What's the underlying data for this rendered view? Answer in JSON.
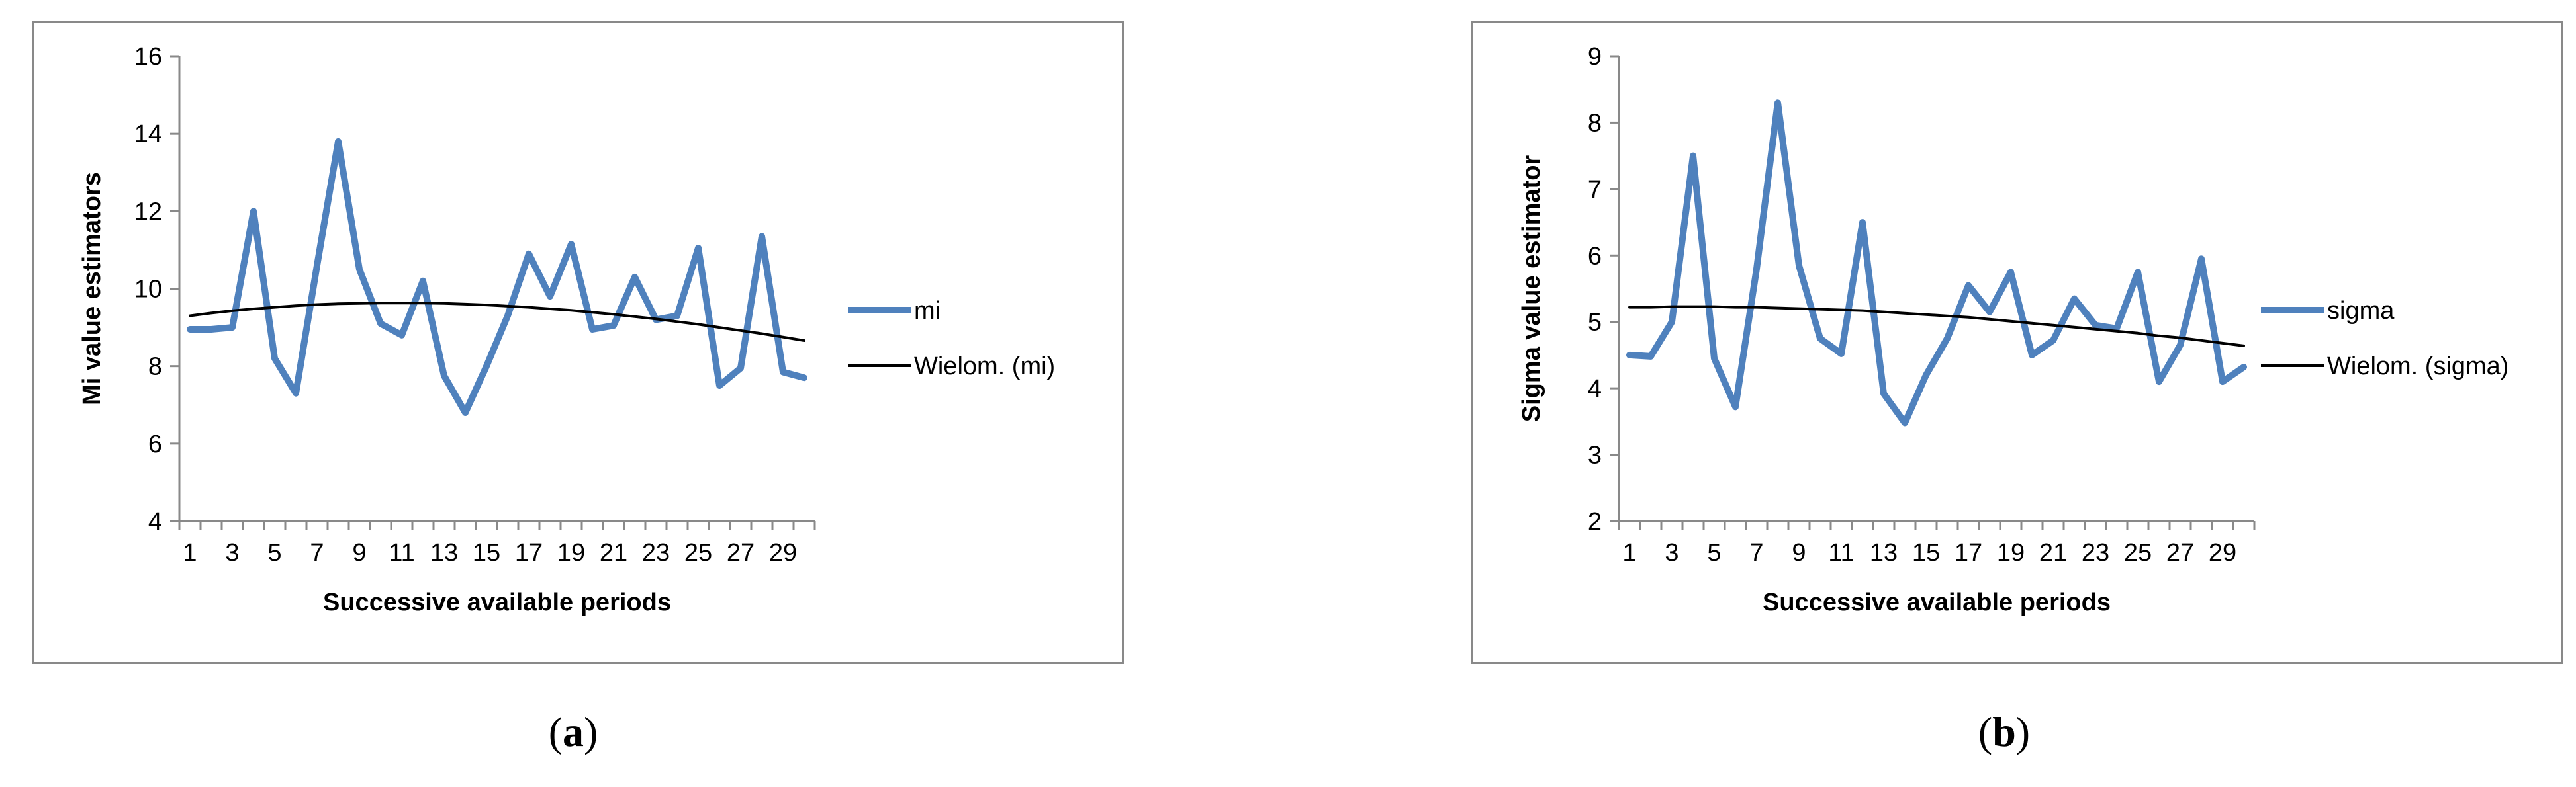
{
  "panels": [
    {
      "label": "a",
      "chart_data": {
        "type": "line",
        "title": "",
        "xlabel": "Successive available periods",
        "ylabel": "Mi value estimators",
        "x": [
          1,
          2,
          3,
          4,
          5,
          6,
          7,
          8,
          9,
          10,
          11,
          12,
          13,
          14,
          15,
          16,
          17,
          18,
          19,
          20,
          21,
          22,
          23,
          24,
          25,
          26,
          27,
          28,
          29,
          30
        ],
        "x_tick_labels": [
          "1",
          "3",
          "5",
          "7",
          "9",
          "11",
          "13",
          "15",
          "17",
          "19",
          "21",
          "23",
          "25",
          "27",
          "29"
        ],
        "ylim": [
          4,
          16
        ],
        "y_ticks": [
          "4",
          "6",
          "8",
          "10",
          "12",
          "14",
          "16"
        ],
        "grid": false,
        "legend_position": "right",
        "series": [
          {
            "name": "mi",
            "color": "#4f81bd",
            "values": [
              8.95,
              8.95,
              9.0,
              12.0,
              8.2,
              7.3,
              10.6,
              13.8,
              10.5,
              9.1,
              8.8,
              10.2,
              7.75,
              6.8,
              8.0,
              9.3,
              10.9,
              9.8,
              11.15,
              8.95,
              9.05,
              10.3,
              9.2,
              9.3,
              11.05,
              7.5,
              7.95,
              11.35,
              7.85,
              7.7
            ]
          },
          {
            "name": "Wielom. (mi)",
            "color": "#000000",
            "values": [
              9.3,
              9.37,
              9.43,
              9.48,
              9.52,
              9.56,
              9.59,
              9.61,
              9.62,
              9.63,
              9.63,
              9.63,
              9.62,
              9.6,
              9.58,
              9.55,
              9.52,
              9.48,
              9.44,
              9.39,
              9.34,
              9.28,
              9.22,
              9.15,
              9.08,
              9.0,
              8.92,
              8.84,
              8.75,
              8.66
            ]
          }
        ]
      }
    },
    {
      "label": "b",
      "chart_data": {
        "type": "line",
        "title": "",
        "xlabel": "Successive available periods",
        "ylabel": "Sigma value estimator",
        "x": [
          1,
          2,
          3,
          4,
          5,
          6,
          7,
          8,
          9,
          10,
          11,
          12,
          13,
          14,
          15,
          16,
          17,
          18,
          19,
          20,
          21,
          22,
          23,
          24,
          25,
          26,
          27,
          28,
          29,
          30
        ],
        "x_tick_labels": [
          "1",
          "3",
          "5",
          "7",
          "9",
          "11",
          "13",
          "15",
          "17",
          "19",
          "21",
          "23",
          "25",
          "27",
          "29"
        ],
        "ylim": [
          2,
          9
        ],
        "y_ticks": [
          "2",
          "3",
          "4",
          "5",
          "6",
          "7",
          "8",
          "9"
        ],
        "grid": false,
        "legend_position": "right",
        "series": [
          {
            "name": "sigma",
            "color": "#4f81bd",
            "values": [
              4.5,
              4.48,
              5.0,
              7.5,
              4.45,
              3.72,
              5.8,
              8.3,
              5.85,
              4.75,
              4.52,
              6.5,
              3.92,
              3.48,
              4.2,
              4.75,
              5.55,
              5.15,
              5.75,
              4.5,
              4.72,
              5.35,
              4.95,
              4.9,
              5.75,
              4.1,
              4.65,
              5.95,
              4.1,
              4.32
            ]
          },
          {
            "name": "Wielom. (sigma)",
            "color": "#000000",
            "values": [
              5.22,
              5.22,
              5.23,
              5.23,
              5.23,
              5.22,
              5.22,
              5.21,
              5.2,
              5.19,
              5.18,
              5.17,
              5.15,
              5.13,
              5.11,
              5.09,
              5.07,
              5.04,
              5.01,
              4.98,
              4.95,
              4.92,
              4.89,
              4.86,
              4.83,
              4.79,
              4.76,
              4.72,
              4.68,
              4.64
            ]
          }
        ]
      }
    }
  ]
}
